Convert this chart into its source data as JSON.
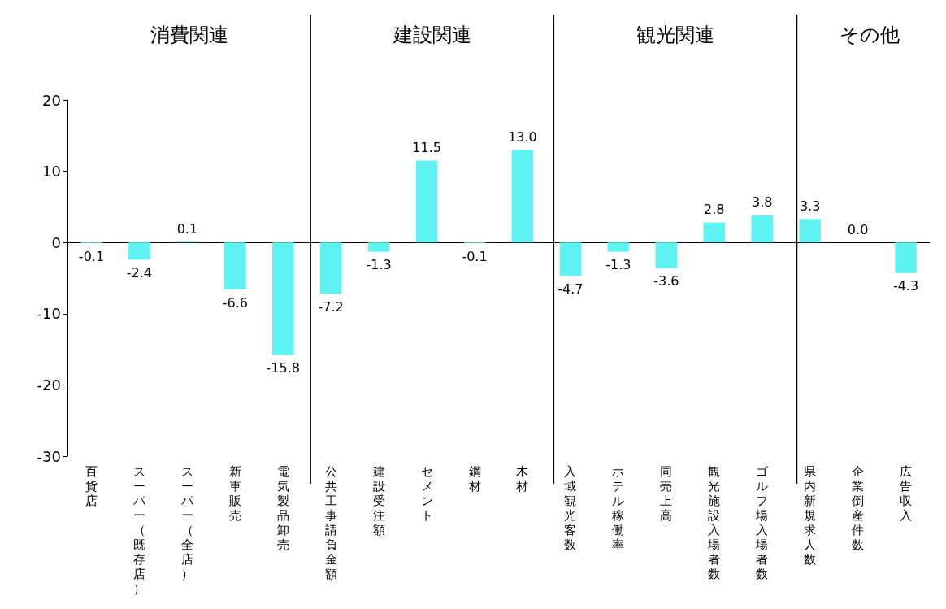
{
  "chart_data": {
    "type": "bar",
    "categories": [
      "百貨店",
      "スーパー（既存店）",
      "スーパー（全店）",
      "新車販売",
      "電気製品卸売",
      "公共工事請負金額",
      "建設受注額",
      "セメント",
      "鋼材",
      "木材",
      "入域観光客数",
      "ホテル稼働率",
      "同売上高",
      "観光施設入場者数",
      "ゴルフ場入場者数",
      "県内新規求人数",
      "企業倒産件数",
      "広告収入"
    ],
    "values": [
      -0.1,
      -2.4,
      0.1,
      -6.6,
      -15.8,
      -7.2,
      -1.3,
      11.5,
      -0.1,
      13.0,
      -4.7,
      -1.3,
      -3.6,
      2.8,
      3.8,
      3.3,
      0.0,
      -4.3
    ],
    "value_labels": [
      "-0.1",
      "-2.4",
      "0.1",
      "-6.6",
      "-15.8",
      "-7.2",
      "-1.3",
      "11.5",
      "-0.1",
      "13.0",
      "-4.7",
      "-1.3",
      "-3.6",
      "2.8",
      "3.8",
      "3.3",
      "0.0",
      "-4.3"
    ],
    "color": "#5ef2f2",
    "ylim": [
      -30,
      20
    ],
    "yticks": [
      -30,
      -20,
      -10,
      0,
      10,
      20
    ],
    "grid": false,
    "annotations": [
      "消費関連",
      "建設関連",
      "観光関連",
      "その他"
    ],
    "ref_lines": [
      {
        "axis": "x",
        "value": "公共工事請負金額",
        "label": null
      },
      {
        "axis": "x",
        "value": "入域観光客数",
        "label": null
      },
      {
        "axis": "x",
        "value": "県内新規求人数",
        "label": null
      }
    ]
  }
}
